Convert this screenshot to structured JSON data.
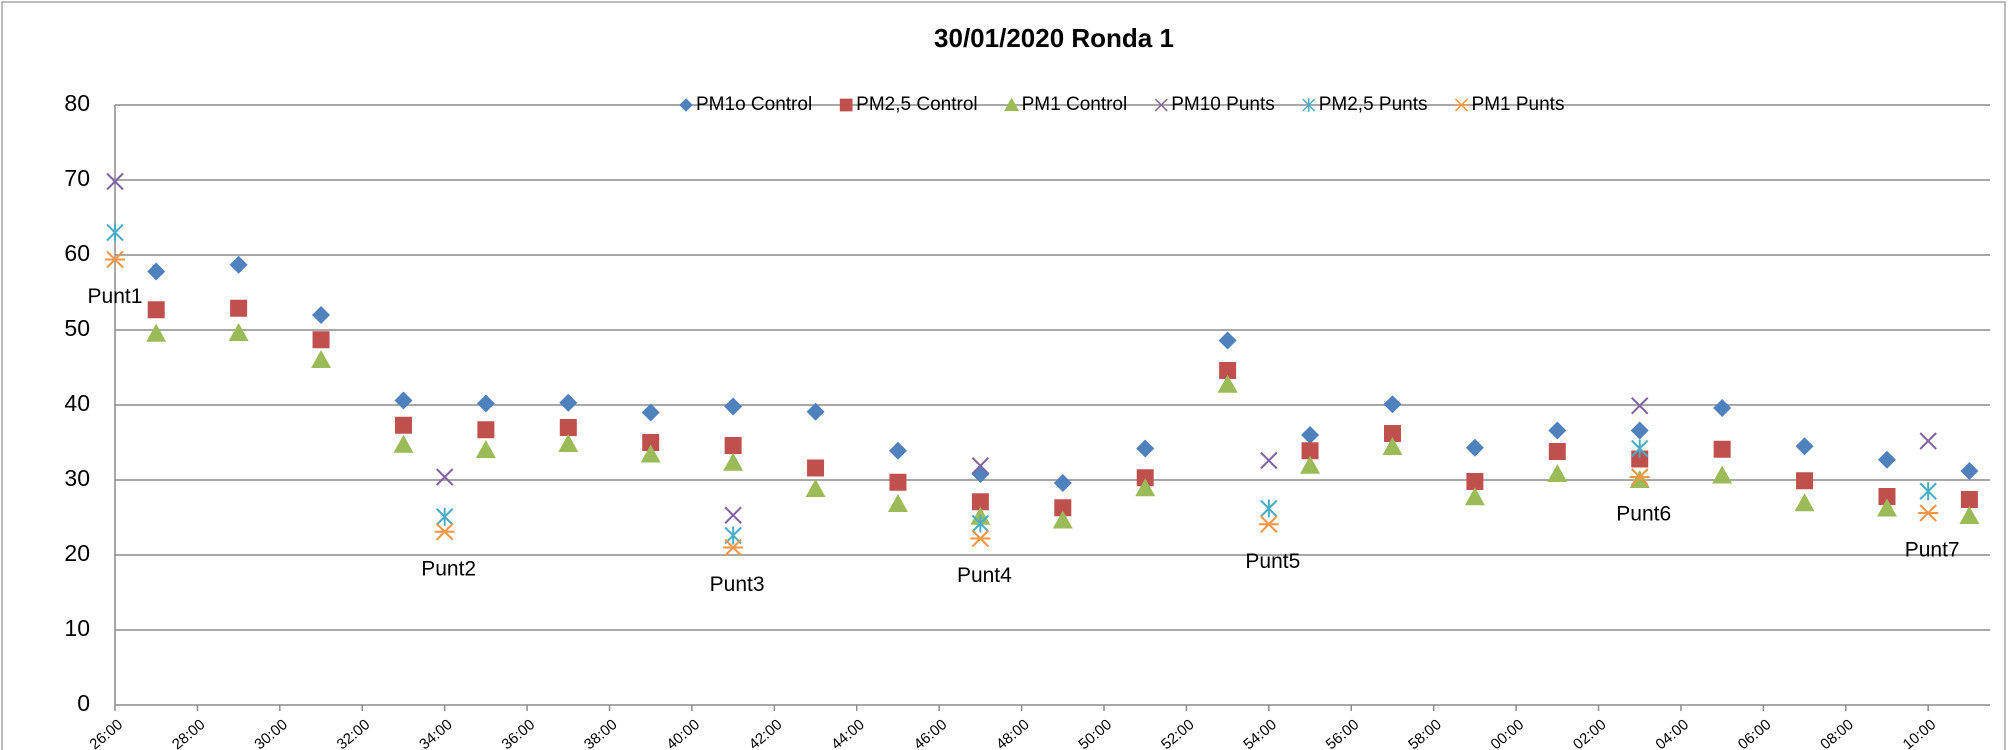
{
  "chart_data": {
    "type": "scatter",
    "title": "30/01/2020 Ronda 1",
    "xlim": [
      0,
      45.5
    ],
    "xticks": [
      {
        "value": 0,
        "label": "26:00"
      },
      {
        "value": 2,
        "label": "28:00"
      },
      {
        "value": 4,
        "label": "30:00"
      },
      {
        "value": 6,
        "label": "32:00"
      },
      {
        "value": 8,
        "label": "34:00"
      },
      {
        "value": 10,
        "label": "36:00"
      },
      {
        "value": 12,
        "label": "38:00"
      },
      {
        "value": 14,
        "label": "40:00"
      },
      {
        "value": 16,
        "label": "42:00"
      },
      {
        "value": 18,
        "label": "44:00"
      },
      {
        "value": 20,
        "label": "46:00"
      },
      {
        "value": 22,
        "label": "48:00"
      },
      {
        "value": 24,
        "label": "50:00"
      },
      {
        "value": 26,
        "label": "52:00"
      },
      {
        "value": 28,
        "label": "54:00"
      },
      {
        "value": 30,
        "label": "56:00"
      },
      {
        "value": 32,
        "label": "58:00"
      },
      {
        "value": 34,
        "label": "00:00"
      },
      {
        "value": 36,
        "label": "02:00"
      },
      {
        "value": 38,
        "label": "04:00"
      },
      {
        "value": 40,
        "label": "06:00"
      },
      {
        "value": 42,
        "label": "08:00"
      },
      {
        "value": 44,
        "label": "10:00"
      }
    ],
    "ylim": [
      0,
      80
    ],
    "yticks": [
      0,
      10,
      20,
      30,
      40,
      50,
      60,
      70,
      80
    ],
    "grid": true,
    "legend": "top",
    "series": [
      {
        "name": "PM1o Control",
        "color": "#4f81bd",
        "marker": "diamond",
        "x": [
          1,
          3,
          5,
          7,
          9,
          11,
          13,
          15,
          17,
          19,
          21,
          23,
          25,
          27,
          29,
          31,
          33,
          35,
          37,
          39,
          41,
          43,
          45
        ],
        "values": [
          57.8,
          58.7,
          52,
          40.6,
          40.2,
          40.3,
          39,
          39.8,
          39.1,
          33.9,
          30.8,
          29.6,
          34.2,
          48.6,
          36,
          40.1,
          34.3,
          36.6,
          36.6,
          39.6,
          34.5,
          32.7,
          31.2
        ]
      },
      {
        "name": "PM2,5 Control",
        "color": "#c0504d",
        "marker": "square",
        "x": [
          1,
          3,
          5,
          7,
          9,
          11,
          13,
          15,
          17,
          19,
          21,
          23,
          25,
          27,
          29,
          31,
          33,
          35,
          37,
          39,
          41,
          43,
          45
        ],
        "values": [
          52.7,
          52.9,
          48.7,
          37.3,
          36.7,
          37,
          35,
          34.6,
          31.6,
          29.7,
          27.1,
          26.3,
          30.3,
          44.6,
          33.9,
          36.2,
          29.8,
          33.8,
          32.8,
          34.1,
          29.9,
          27.8,
          27.4
        ]
      },
      {
        "name": "PM1 Control",
        "color": "#9bbb59",
        "marker": "triangle",
        "x": [
          1,
          3,
          5,
          7,
          9,
          11,
          13,
          15,
          17,
          19,
          21,
          23,
          25,
          27,
          29,
          31,
          33,
          35,
          37,
          39,
          41,
          43,
          45
        ],
        "values": [
          49.5,
          49.6,
          46,
          34.7,
          34,
          34.8,
          33.4,
          32.3,
          28.8,
          26.8,
          25.1,
          24.6,
          28.9,
          42.7,
          31.9,
          34.4,
          27.7,
          30.8,
          30,
          30.6,
          26.9,
          26.2,
          25.2
        ]
      },
      {
        "name": "PM10 Punts",
        "color": "#8064a2",
        "marker": "x",
        "x": [
          0,
          8,
          15,
          21,
          28,
          37,
          44
        ],
        "values": [
          69.8,
          30.4,
          25.3,
          31.9,
          32.6,
          39.9,
          35.2
        ]
      },
      {
        "name": "PM2,5 Punts",
        "color": "#4bacc6",
        "marker": "asterisk",
        "x": [
          0,
          8,
          15,
          21,
          28,
          37,
          44
        ],
        "values": [
          63,
          25.1,
          22.6,
          24.2,
          26.2,
          34.2,
          28.5
        ]
      },
      {
        "name": "PM1 Punts",
        "color": "#f79646",
        "marker": "star",
        "x": [
          0,
          8,
          15,
          21,
          28,
          37,
          44
        ],
        "values": [
          59.4,
          23.1,
          21,
          22.2,
          24.1,
          30.4,
          25.6
        ],
        "labels": [
          "Punt1",
          "Punt2",
          "Punt3",
          "Punt4",
          "Punt5",
          "Punt6",
          "Punt7"
        ]
      }
    ]
  }
}
